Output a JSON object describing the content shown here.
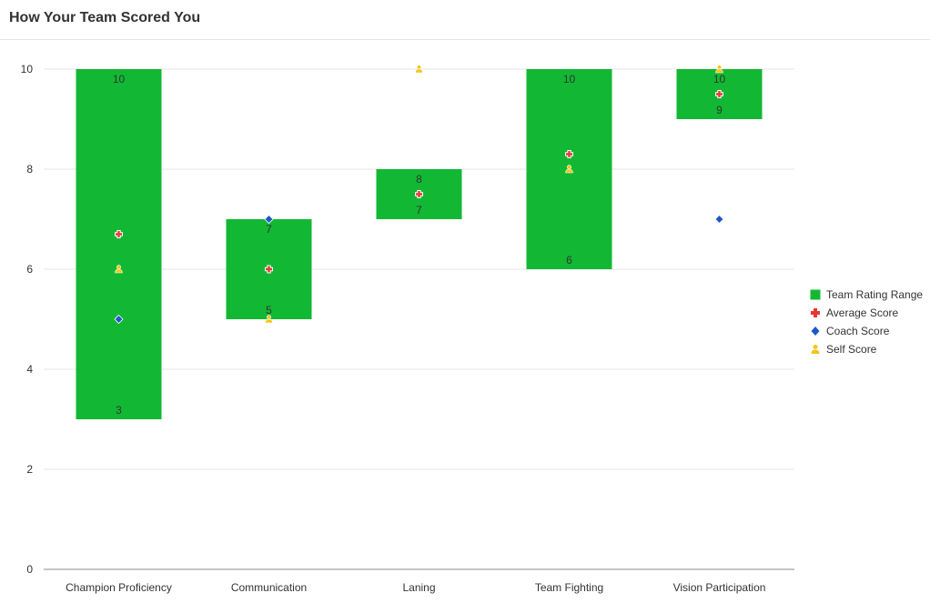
{
  "header": {
    "title": "How Your Team Scored You"
  },
  "colors": {
    "range": "#12b833",
    "average": "#e53935",
    "coach": "#1e56c8",
    "self": "#f5c518",
    "grid": "#e6e6e6",
    "axis": "#8c8c8c"
  },
  "chart_data": {
    "type": "bar",
    "title": "How Your Team Scored You",
    "xlabel": "",
    "ylabel": "",
    "ylim": [
      0,
      10
    ],
    "yticks": [
      "0",
      "2",
      "4",
      "6",
      "8",
      "10"
    ],
    "grid": true,
    "legend_position": "right",
    "categories": [
      "Champion Proficiency",
      "Communication",
      "Laning",
      "Team Fighting",
      "Vision Participation"
    ],
    "series": [
      {
        "name": "Team Rating Range",
        "kind": "range",
        "low": [
          3,
          5,
          7,
          6,
          9
        ],
        "high": [
          10,
          7,
          8,
          10,
          10
        ],
        "low_labels": [
          "3",
          "5",
          "7",
          "6",
          "9"
        ],
        "high_labels": [
          "10",
          "7",
          "8",
          "10",
          "10"
        ]
      },
      {
        "name": "Average Score",
        "kind": "marker",
        "marker": "plus",
        "values": [
          6.7,
          6.0,
          7.5,
          8.3,
          9.5
        ]
      },
      {
        "name": "Coach Score",
        "kind": "marker",
        "marker": "diamond",
        "values": [
          5,
          7,
          null,
          null,
          7
        ]
      },
      {
        "name": "Self Score",
        "kind": "marker",
        "marker": "person",
        "values": [
          6,
          5,
          10,
          8,
          10
        ]
      }
    ]
  }
}
